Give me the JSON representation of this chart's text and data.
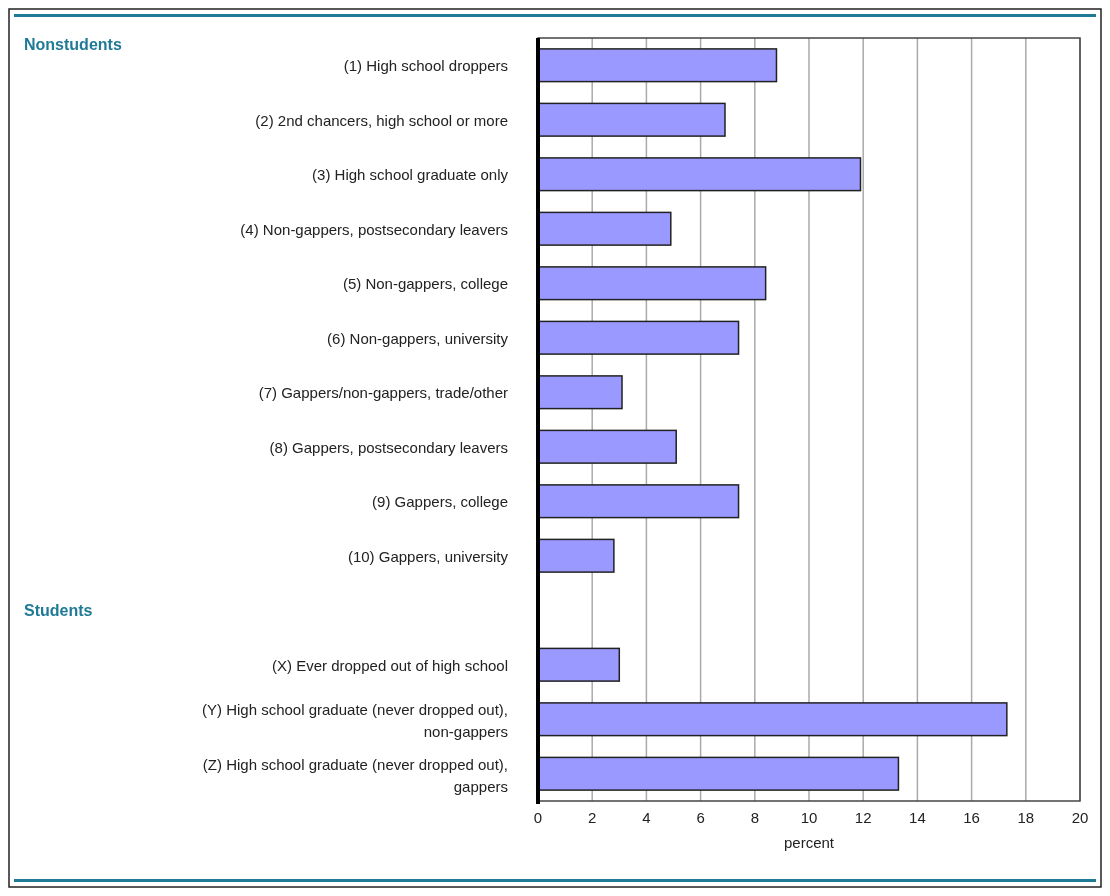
{
  "chart_data": {
    "type": "bar",
    "orientation": "horizontal",
    "xlabel": "percent",
    "categories": [
      "(1) High school droppers",
      "(2) 2nd chancers, high school or more",
      "(3) High school graduate only",
      "(4) Non-gappers, postsecondary leavers",
      "(5) Non-gappers, college",
      "(6) Non-gappers, university",
      "(7) Gappers/non-gappers, trade/other",
      "(8) Gappers, postsecondary leavers",
      "(9) Gappers, college",
      "(10) Gappers, university",
      null,
      "(X) Ever dropped out of high school",
      "(Y) High school graduate (never dropped out), non-gappers",
      "(Z) High school graduate (never dropped out), gappers"
    ],
    "values": [
      8.8,
      6.9,
      11.9,
      4.9,
      8.4,
      7.4,
      3.1,
      5.1,
      7.4,
      2.8,
      null,
      3.0,
      17.3,
      13.3
    ],
    "color": "#9999ff",
    "xlim": [
      0,
      20
    ],
    "xticks": [
      0,
      2,
      4,
      6,
      8,
      10,
      12,
      14,
      16,
      18,
      20
    ],
    "grid": "x",
    "annotations": [
      "Nonstudents",
      "Students"
    ]
  }
}
